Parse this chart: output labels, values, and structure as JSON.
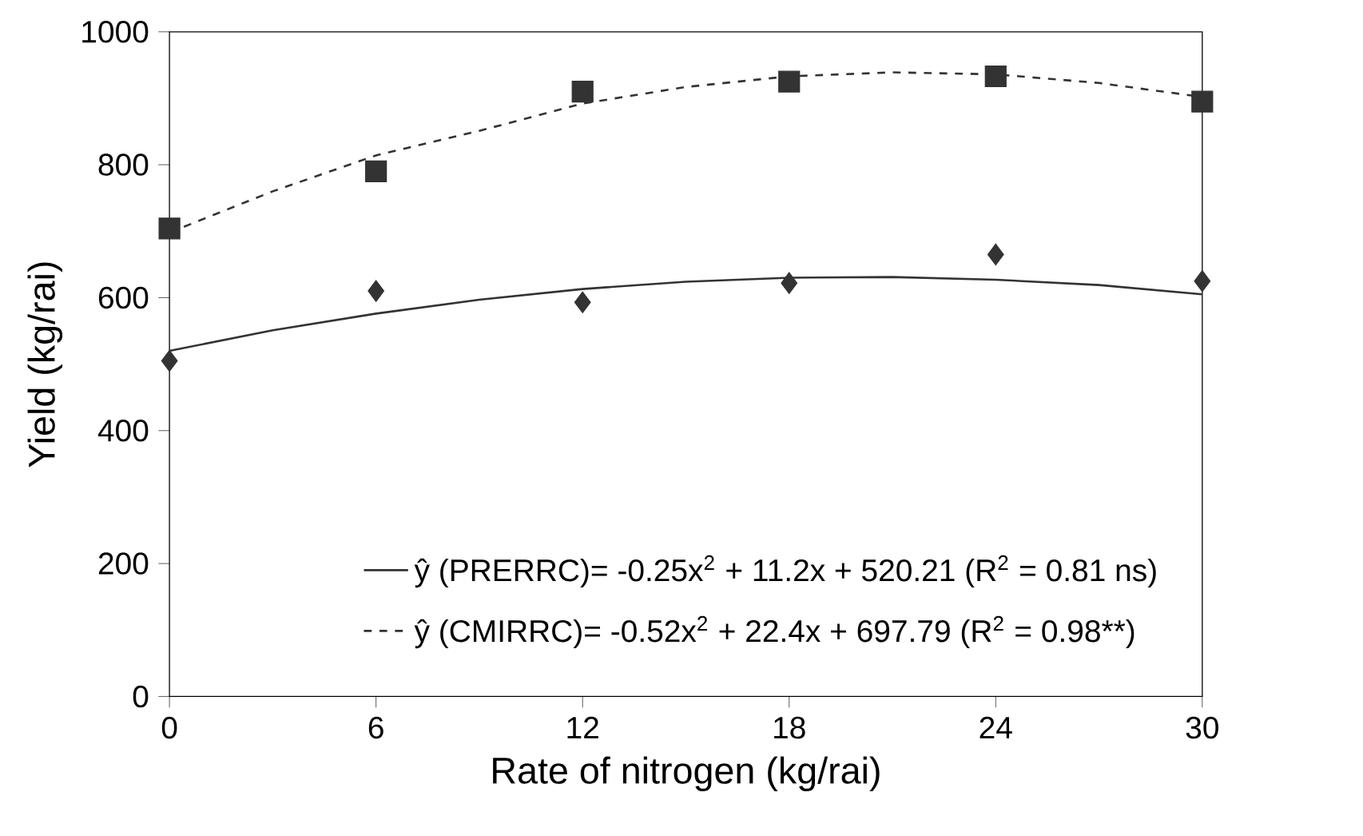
{
  "chart_data": {
    "type": "scatter",
    "xlabel": "Rate of nitrogen (kg/rai)",
    "ylabel": "Yield (kg/rai)",
    "xlim": [
      0,
      30
    ],
    "ylim": [
      0,
      1000
    ],
    "xticks": [
      0,
      6,
      12,
      18,
      24,
      30
    ],
    "yticks": [
      0,
      200,
      400,
      600,
      800,
      1000
    ],
    "grid": false,
    "legend": "bottom right",
    "series": [
      {
        "type": "line",
        "name": "ŷ (PRERRC)= -0.25x$^{2}$ + 11.2x + 520.21 (R$^{2}$ = 0.81 ns)",
        "color": "#333333",
        "line_style": "solid",
        "marker": "none",
        "x": [
          0,
          3,
          6,
          9,
          12,
          15,
          18,
          21,
          24,
          27,
          30
        ],
        "values": [
          520,
          551,
          576,
          597,
          613,
          624,
          630,
          631,
          627,
          619,
          605
        ]
      },
      {
        "type": "line",
        "name": "ŷ (CMIRRC)= -0.52x$^{2}$ + 22.4x + 697.79 (R$^{2}$ = 0.98**)",
        "color": "#333333",
        "line_style": "dashed",
        "marker": "none",
        "x": [
          0,
          3,
          6,
          9,
          12,
          15,
          18,
          21,
          24,
          27,
          30
        ],
        "values": [
          698,
          760,
          814,
          851,
          892,
          917,
          933,
          939,
          936,
          923,
          902
        ]
      },
      {
        "color": "#333333",
        "marker": "diamond",
        "x": [
          0,
          6,
          12,
          18,
          24,
          30
        ],
        "values": [
          505,
          610,
          593,
          622,
          665,
          625
        ]
      },
      {
        "color": "#333333",
        "marker": "square",
        "x": [
          0,
          6,
          12,
          18,
          24,
          30
        ],
        "values": [
          704,
          790,
          910,
          925,
          933,
          895
        ]
      }
    ]
  }
}
